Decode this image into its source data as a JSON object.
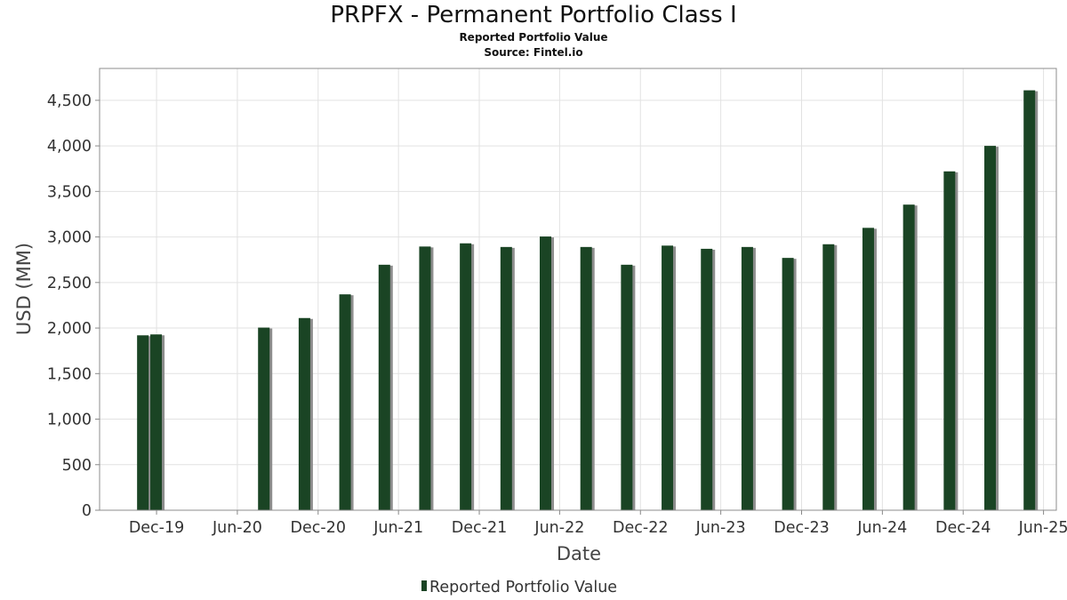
{
  "chart_data": {
    "type": "bar",
    "title": "PRPFX - Permanent Portfolio Class I",
    "subtitle": "Reported Portfolio Value",
    "source": "Source: Fintel.io",
    "xlabel": "Date",
    "ylabel": "USD (MM)",
    "ylim": [
      0,
      4850
    ],
    "yticks": [
      0,
      500,
      1000,
      1500,
      2000,
      2500,
      3000,
      3500,
      4000,
      4500
    ],
    "ytick_labels": [
      "0",
      "500",
      "1,000",
      "1,500",
      "2,000",
      "2,500",
      "3,000",
      "3,500",
      "4,000",
      "4,500"
    ],
    "xlim": [
      "2019-07-25",
      "2025-06-30"
    ],
    "xticks": [
      "2019-12-01",
      "2020-06-01",
      "2020-12-01",
      "2021-06-01",
      "2021-12-01",
      "2022-06-01",
      "2022-12-01",
      "2023-06-01",
      "2023-12-01",
      "2024-06-01",
      "2024-12-01",
      "2025-06-01"
    ],
    "xtick_labels": [
      "Dec-19",
      "Jun-20",
      "Dec-20",
      "Jun-21",
      "Dec-21",
      "Jun-22",
      "Dec-22",
      "Jun-23",
      "Dec-23",
      "Jun-24",
      "Dec-24",
      "Jun-25"
    ],
    "grid": true,
    "legend_position": "bottom-center",
    "series": [
      {
        "name": "Reported Portfolio Value",
        "color": "#1a4424",
        "points": [
          {
            "x": "2019-10-31",
            "y": 1920
          },
          {
            "x": "2019-11-30",
            "y": 1930
          },
          {
            "x": "2020-07-31",
            "y": 2005
          },
          {
            "x": "2020-10-31",
            "y": 2110
          },
          {
            "x": "2021-01-31",
            "y": 2370
          },
          {
            "x": "2021-04-30",
            "y": 2695
          },
          {
            "x": "2021-07-31",
            "y": 2895
          },
          {
            "x": "2021-10-31",
            "y": 2930
          },
          {
            "x": "2022-01-31",
            "y": 2890
          },
          {
            "x": "2022-04-30",
            "y": 3005
          },
          {
            "x": "2022-07-31",
            "y": 2890
          },
          {
            "x": "2022-10-31",
            "y": 2695
          },
          {
            "x": "2023-01-31",
            "y": 2905
          },
          {
            "x": "2023-04-30",
            "y": 2870
          },
          {
            "x": "2023-07-31",
            "y": 2890
          },
          {
            "x": "2023-10-31",
            "y": 2770
          },
          {
            "x": "2024-01-31",
            "y": 2920
          },
          {
            "x": "2024-04-30",
            "y": 3100
          },
          {
            "x": "2024-07-31",
            "y": 3355
          },
          {
            "x": "2024-10-31",
            "y": 3720
          },
          {
            "x": "2025-01-31",
            "y": 4000
          },
          {
            "x": "2025-04-30",
            "y": 4610
          }
        ]
      }
    ]
  }
}
